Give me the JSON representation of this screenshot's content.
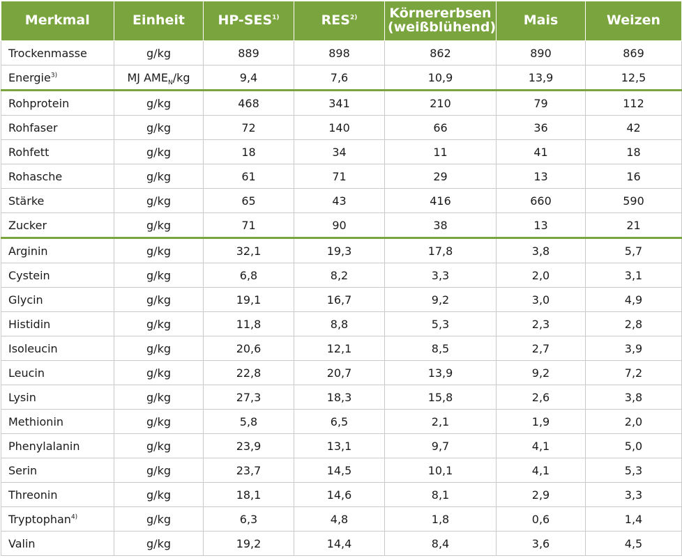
{
  "table": {
    "headers": [
      {
        "text": "Merkmal",
        "sup": ""
      },
      {
        "text": "Einheit",
        "sup": ""
      },
      {
        "text": "HP-SES",
        "sup": "1)"
      },
      {
        "text": "RES",
        "sup": "2)"
      },
      {
        "text": "Körnererbsen (weißblühend)",
        "sup": ""
      },
      {
        "text": "Mais",
        "sup": ""
      },
      {
        "text": "Weizen",
        "sup": ""
      }
    ],
    "rows": [
      {
        "name": "Trockenmasse",
        "name_sup": "",
        "unit": "g/kg",
        "unit_sub": "",
        "unit_suffix": "",
        "values": [
          "889",
          "898",
          "862",
          "890",
          "869"
        ],
        "sep": false
      },
      {
        "name": "Energie",
        "name_sup": "3)",
        "unit": "MJ AME",
        "unit_sub": "N",
        "unit_suffix": "/kg",
        "values": [
          "9,4",
          "7,6",
          "10,9",
          "13,9",
          "12,5"
        ],
        "sep": false
      },
      {
        "name": "Rohprotein",
        "name_sup": "",
        "unit": "g/kg",
        "unit_sub": "",
        "unit_suffix": "",
        "values": [
          "468",
          "341",
          "210",
          "79",
          "112"
        ],
        "sep": true
      },
      {
        "name": "Rohfaser",
        "name_sup": "",
        "unit": "g/kg",
        "unit_sub": "",
        "unit_suffix": "",
        "values": [
          "72",
          "140",
          "66",
          "36",
          "42"
        ],
        "sep": false
      },
      {
        "name": "Rohfett",
        "name_sup": "",
        "unit": "g/kg",
        "unit_sub": "",
        "unit_suffix": "",
        "values": [
          "18",
          "34",
          "11",
          "41",
          "18"
        ],
        "sep": false
      },
      {
        "name": "Rohasche",
        "name_sup": "",
        "unit": "g/kg",
        "unit_sub": "",
        "unit_suffix": "",
        "values": [
          "61",
          "71",
          "29",
          "13",
          "16"
        ],
        "sep": false
      },
      {
        "name": "Stärke",
        "name_sup": "",
        "unit": "g/kg",
        "unit_sub": "",
        "unit_suffix": "",
        "values": [
          "65",
          "43",
          "416",
          "660",
          "590"
        ],
        "sep": false
      },
      {
        "name": "Zucker",
        "name_sup": "",
        "unit": "g/kg",
        "unit_sub": "",
        "unit_suffix": "",
        "values": [
          "71",
          "90",
          "38",
          "13",
          "21"
        ],
        "sep": false
      },
      {
        "name": "Arginin",
        "name_sup": "",
        "unit": "g/kg",
        "unit_sub": "",
        "unit_suffix": "",
        "values": [
          "32,1",
          "19,3",
          "17,8",
          "3,8",
          "5,7"
        ],
        "sep": true
      },
      {
        "name": "Cystein",
        "name_sup": "",
        "unit": "g/kg",
        "unit_sub": "",
        "unit_suffix": "",
        "values": [
          "6,8",
          "8,2",
          "3,3",
          "2,0",
          "3,1"
        ],
        "sep": false
      },
      {
        "name": "Glycin",
        "name_sup": "",
        "unit": "g/kg",
        "unit_sub": "",
        "unit_suffix": "",
        "values": [
          "19,1",
          "16,7",
          "9,2",
          "3,0",
          "4,9"
        ],
        "sep": false
      },
      {
        "name": "Histidin",
        "name_sup": "",
        "unit": "g/kg",
        "unit_sub": "",
        "unit_suffix": "",
        "values": [
          "11,8",
          "8,8",
          "5,3",
          "2,3",
          "2,8"
        ],
        "sep": false
      },
      {
        "name": "Isoleucin",
        "name_sup": "",
        "unit": "g/kg",
        "unit_sub": "",
        "unit_suffix": "",
        "values": [
          "20,6",
          "12,1",
          "8,5",
          "2,7",
          "3,9"
        ],
        "sep": false
      },
      {
        "name": "Leucin",
        "name_sup": "",
        "unit": "g/kg",
        "unit_sub": "",
        "unit_suffix": "",
        "values": [
          "22,8",
          "20,7",
          "13,9",
          "9,2",
          "7,2"
        ],
        "sep": false
      },
      {
        "name": "Lysin",
        "name_sup": "",
        "unit": "g/kg",
        "unit_sub": "",
        "unit_suffix": "",
        "values": [
          "27,3",
          "18,3",
          "15,8",
          "2,6",
          "3,8"
        ],
        "sep": false
      },
      {
        "name": "Methionin",
        "name_sup": "",
        "unit": "g/kg",
        "unit_sub": "",
        "unit_suffix": "",
        "values": [
          "5,8",
          "6,5",
          "2,1",
          "1,9",
          "2,0"
        ],
        "sep": false
      },
      {
        "name": "Phenylalanin",
        "name_sup": "",
        "unit": "g/kg",
        "unit_sub": "",
        "unit_suffix": "",
        "values": [
          "23,9",
          "13,1",
          "9,7",
          "4,1",
          "5,0"
        ],
        "sep": false
      },
      {
        "name": "Serin",
        "name_sup": "",
        "unit": "g/kg",
        "unit_sub": "",
        "unit_suffix": "",
        "values": [
          "23,7",
          "14,5",
          "10,1",
          "4,1",
          "5,3"
        ],
        "sep": false
      },
      {
        "name": "Threonin",
        "name_sup": "",
        "unit": "g/kg",
        "unit_sub": "",
        "unit_suffix": "",
        "values": [
          "18,1",
          "14,6",
          "8,1",
          "2,9",
          "3,3"
        ],
        "sep": false
      },
      {
        "name": "Tryptophan",
        "name_sup": "4)",
        "unit": "g/kg",
        "unit_sub": "",
        "unit_suffix": "",
        "values": [
          "6,3",
          "4,8",
          "1,8",
          "0,6",
          "1,4"
        ],
        "sep": false
      },
      {
        "name": "Valin",
        "name_sup": "",
        "unit": "g/kg",
        "unit_sub": "",
        "unit_suffix": "",
        "values": [
          "19,2",
          "14,4",
          "8,4",
          "3,6",
          "4,5"
        ],
        "sep": false
      }
    ]
  },
  "colors": {
    "header_bg": "#7aa43d",
    "header_text": "#ffffff",
    "separator": "#7aa43d",
    "grid": "#c9c9c9"
  }
}
